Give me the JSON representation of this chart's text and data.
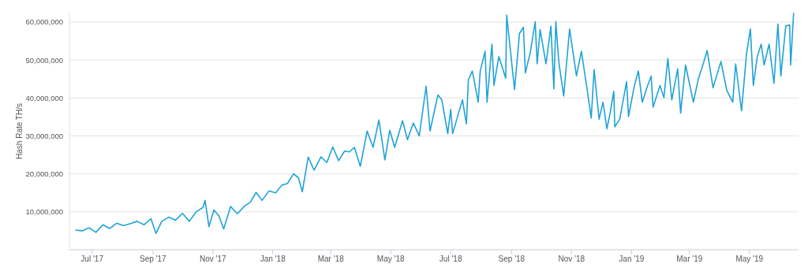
{
  "chart_data": {
    "type": "line",
    "ylabel": "Hash Rate TH/s",
    "x": [
      "2017-06-14",
      "2017-06-21",
      "2017-06-28",
      "2017-07-05",
      "2017-07-12",
      "2017-07-19",
      "2017-07-26",
      "2017-08-02",
      "2017-08-09",
      "2017-08-16",
      "2017-08-23",
      "2017-08-30",
      "2017-09-04",
      "2017-09-10",
      "2017-09-17",
      "2017-09-24",
      "2017-10-01",
      "2017-10-08",
      "2017-10-15",
      "2017-10-22",
      "2017-10-24",
      "2017-10-28",
      "2017-11-02",
      "2017-11-07",
      "2017-11-12",
      "2017-11-19",
      "2017-11-26",
      "2017-12-03",
      "2017-12-09",
      "2017-12-15",
      "2017-12-21",
      "2017-12-28",
      "2018-01-04",
      "2018-01-10",
      "2018-01-16",
      "2018-01-22",
      "2018-01-27",
      "2018-01-31",
      "2018-02-06",
      "2018-02-12",
      "2018-02-19",
      "2018-02-25",
      "2018-03-03",
      "2018-03-09",
      "2018-03-15",
      "2018-03-20",
      "2018-03-25",
      "2018-03-31",
      "2018-04-07",
      "2018-04-13",
      "2018-04-19",
      "2018-04-25",
      "2018-04-30",
      "2018-05-05",
      "2018-05-13",
      "2018-05-18",
      "2018-05-24",
      "2018-05-30",
      "2018-06-06",
      "2018-06-10",
      "2018-06-18",
      "2018-06-22",
      "2018-06-28",
      "2018-07-01",
      "2018-07-03",
      "2018-07-09",
      "2018-07-13",
      "2018-07-17",
      "2018-07-19",
      "2018-07-23",
      "2018-07-29",
      "2018-07-31",
      "2018-08-05",
      "2018-08-07",
      "2018-08-12",
      "2018-08-14",
      "2018-08-19",
      "2018-08-26",
      "2018-08-27",
      "2018-09-04",
      "2018-09-09",
      "2018-09-13",
      "2018-09-15",
      "2018-09-20",
      "2018-09-25",
      "2018-09-27",
      "2018-09-30",
      "2018-10-06",
      "2018-10-11",
      "2018-10-14",
      "2018-10-16",
      "2018-10-19",
      "2018-10-24",
      "2018-10-30",
      "2018-11-06",
      "2018-11-11",
      "2018-11-17",
      "2018-11-21",
      "2018-11-24",
      "2018-11-29",
      "2018-12-03",
      "2018-12-07",
      "2018-12-10",
      "2018-12-14",
      "2018-12-15",
      "2018-12-20",
      "2018-12-27",
      "2018-12-29",
      "2019-01-04",
      "2019-01-08",
      "2019-01-12",
      "2019-01-17",
      "2019-01-21",
      "2019-01-23",
      "2019-01-30",
      "2019-02-03",
      "2019-02-07",
      "2019-02-11",
      "2019-02-17",
      "2019-02-20",
      "2019-02-25",
      "2019-03-05",
      "2019-03-10",
      "2019-03-15",
      "2019-03-19",
      "2019-03-25",
      "2019-04-02",
      "2019-04-08",
      "2019-04-14",
      "2019-04-17",
      "2019-04-23",
      "2019-04-28",
      "2019-05-02",
      "2019-05-05",
      "2019-05-09",
      "2019-05-13",
      "2019-05-16",
      "2019-05-21",
      "2019-05-26",
      "2019-05-30",
      "2019-06-02",
      "2019-06-07",
      "2019-06-11",
      "2019-06-12",
      "2019-06-15"
    ],
    "series": [
      {
        "color": "#1fa3d6",
        "values": [
          5200000,
          5000000,
          5800000,
          4600000,
          6600000,
          5600000,
          7000000,
          6400000,
          6900000,
          7500000,
          6600000,
          8200000,
          4300000,
          7500000,
          8600000,
          7800000,
          9600000,
          7500000,
          10000000,
          11200000,
          13000000,
          6100000,
          10500000,
          9000000,
          5500000,
          11400000,
          9500000,
          11500000,
          12500000,
          15100000,
          13000000,
          15500000,
          15000000,
          17000000,
          17500000,
          20000000,
          19000000,
          15300000,
          24400000,
          21000000,
          24500000,
          23000000,
          27100000,
          23500000,
          26000000,
          25800000,
          27000000,
          22000000,
          31300000,
          27000000,
          34200000,
          23700000,
          31500000,
          27000000,
          34000000,
          29000000,
          33400000,
          30000000,
          43100000,
          31300000,
          40800000,
          39500000,
          30600000,
          37000000,
          30600000,
          36000000,
          39500000,
          33200000,
          44800000,
          47100000,
          38900000,
          47000000,
          52300000,
          38900000,
          54200000,
          43300000,
          50900000,
          45200000,
          61800000,
          42200000,
          57000000,
          58600000,
          46600000,
          52000000,
          60100000,
          49000000,
          58000000,
          49000000,
          58900000,
          42400000,
          60100000,
          49600000,
          40500000,
          58200000,
          45800000,
          52300000,
          42000000,
          34700000,
          47500000,
          34400000,
          38900000,
          31900000,
          35700000,
          41800000,
          32400000,
          34400000,
          44300000,
          35100000,
          43300000,
          47100000,
          38900000,
          43000000,
          45800000,
          37600000,
          43300000,
          40100000,
          50400000,
          39500000,
          47700000,
          36000000,
          48700000,
          38900000,
          45000000,
          49000000,
          52500000,
          42700000,
          49600000,
          42000000,
          38900000,
          49000000,
          36600000,
          51500000,
          58200000,
          43300000,
          50900000,
          54200000,
          48700000,
          54200000,
          43900000,
          59500000,
          45800000,
          59000000,
          59200000,
          48700000,
          62400000
        ]
      }
    ],
    "xlim": [
      "2017-06-08",
      "2019-06-20"
    ],
    "xticks": [
      {
        "value": "2017-07-01",
        "label": "Jul '17"
      },
      {
        "value": "2017-09-01",
        "label": "Sep '17"
      },
      {
        "value": "2017-11-01",
        "label": "Nov '17"
      },
      {
        "value": "2018-01-01",
        "label": "Jan '18"
      },
      {
        "value": "2018-03-01",
        "label": "Mar '18"
      },
      {
        "value": "2018-05-01",
        "label": "May '18"
      },
      {
        "value": "2018-07-01",
        "label": "Jul '18"
      },
      {
        "value": "2018-09-01",
        "label": "Sep '18"
      },
      {
        "value": "2018-11-01",
        "label": "Nov '18"
      },
      {
        "value": "2019-01-01",
        "label": "Jan '19"
      },
      {
        "value": "2019-03-01",
        "label": "Mar '19"
      },
      {
        "value": "2019-05-01",
        "label": "May '19"
      }
    ],
    "ylim": [
      0,
      62500000
    ],
    "yticks": [
      {
        "value": 10000000,
        "label": "10,000,000"
      },
      {
        "value": 20000000,
        "label": "20,000,000"
      },
      {
        "value": 30000000,
        "label": "30,000,000"
      },
      {
        "value": 40000000,
        "label": "40,000,000"
      },
      {
        "value": 50000000,
        "label": "50,000,000"
      },
      {
        "value": 60000000,
        "label": "60,000,000"
      }
    ],
    "grid": "y",
    "legend": false,
    "marker": "none",
    "line_style": "solid"
  }
}
